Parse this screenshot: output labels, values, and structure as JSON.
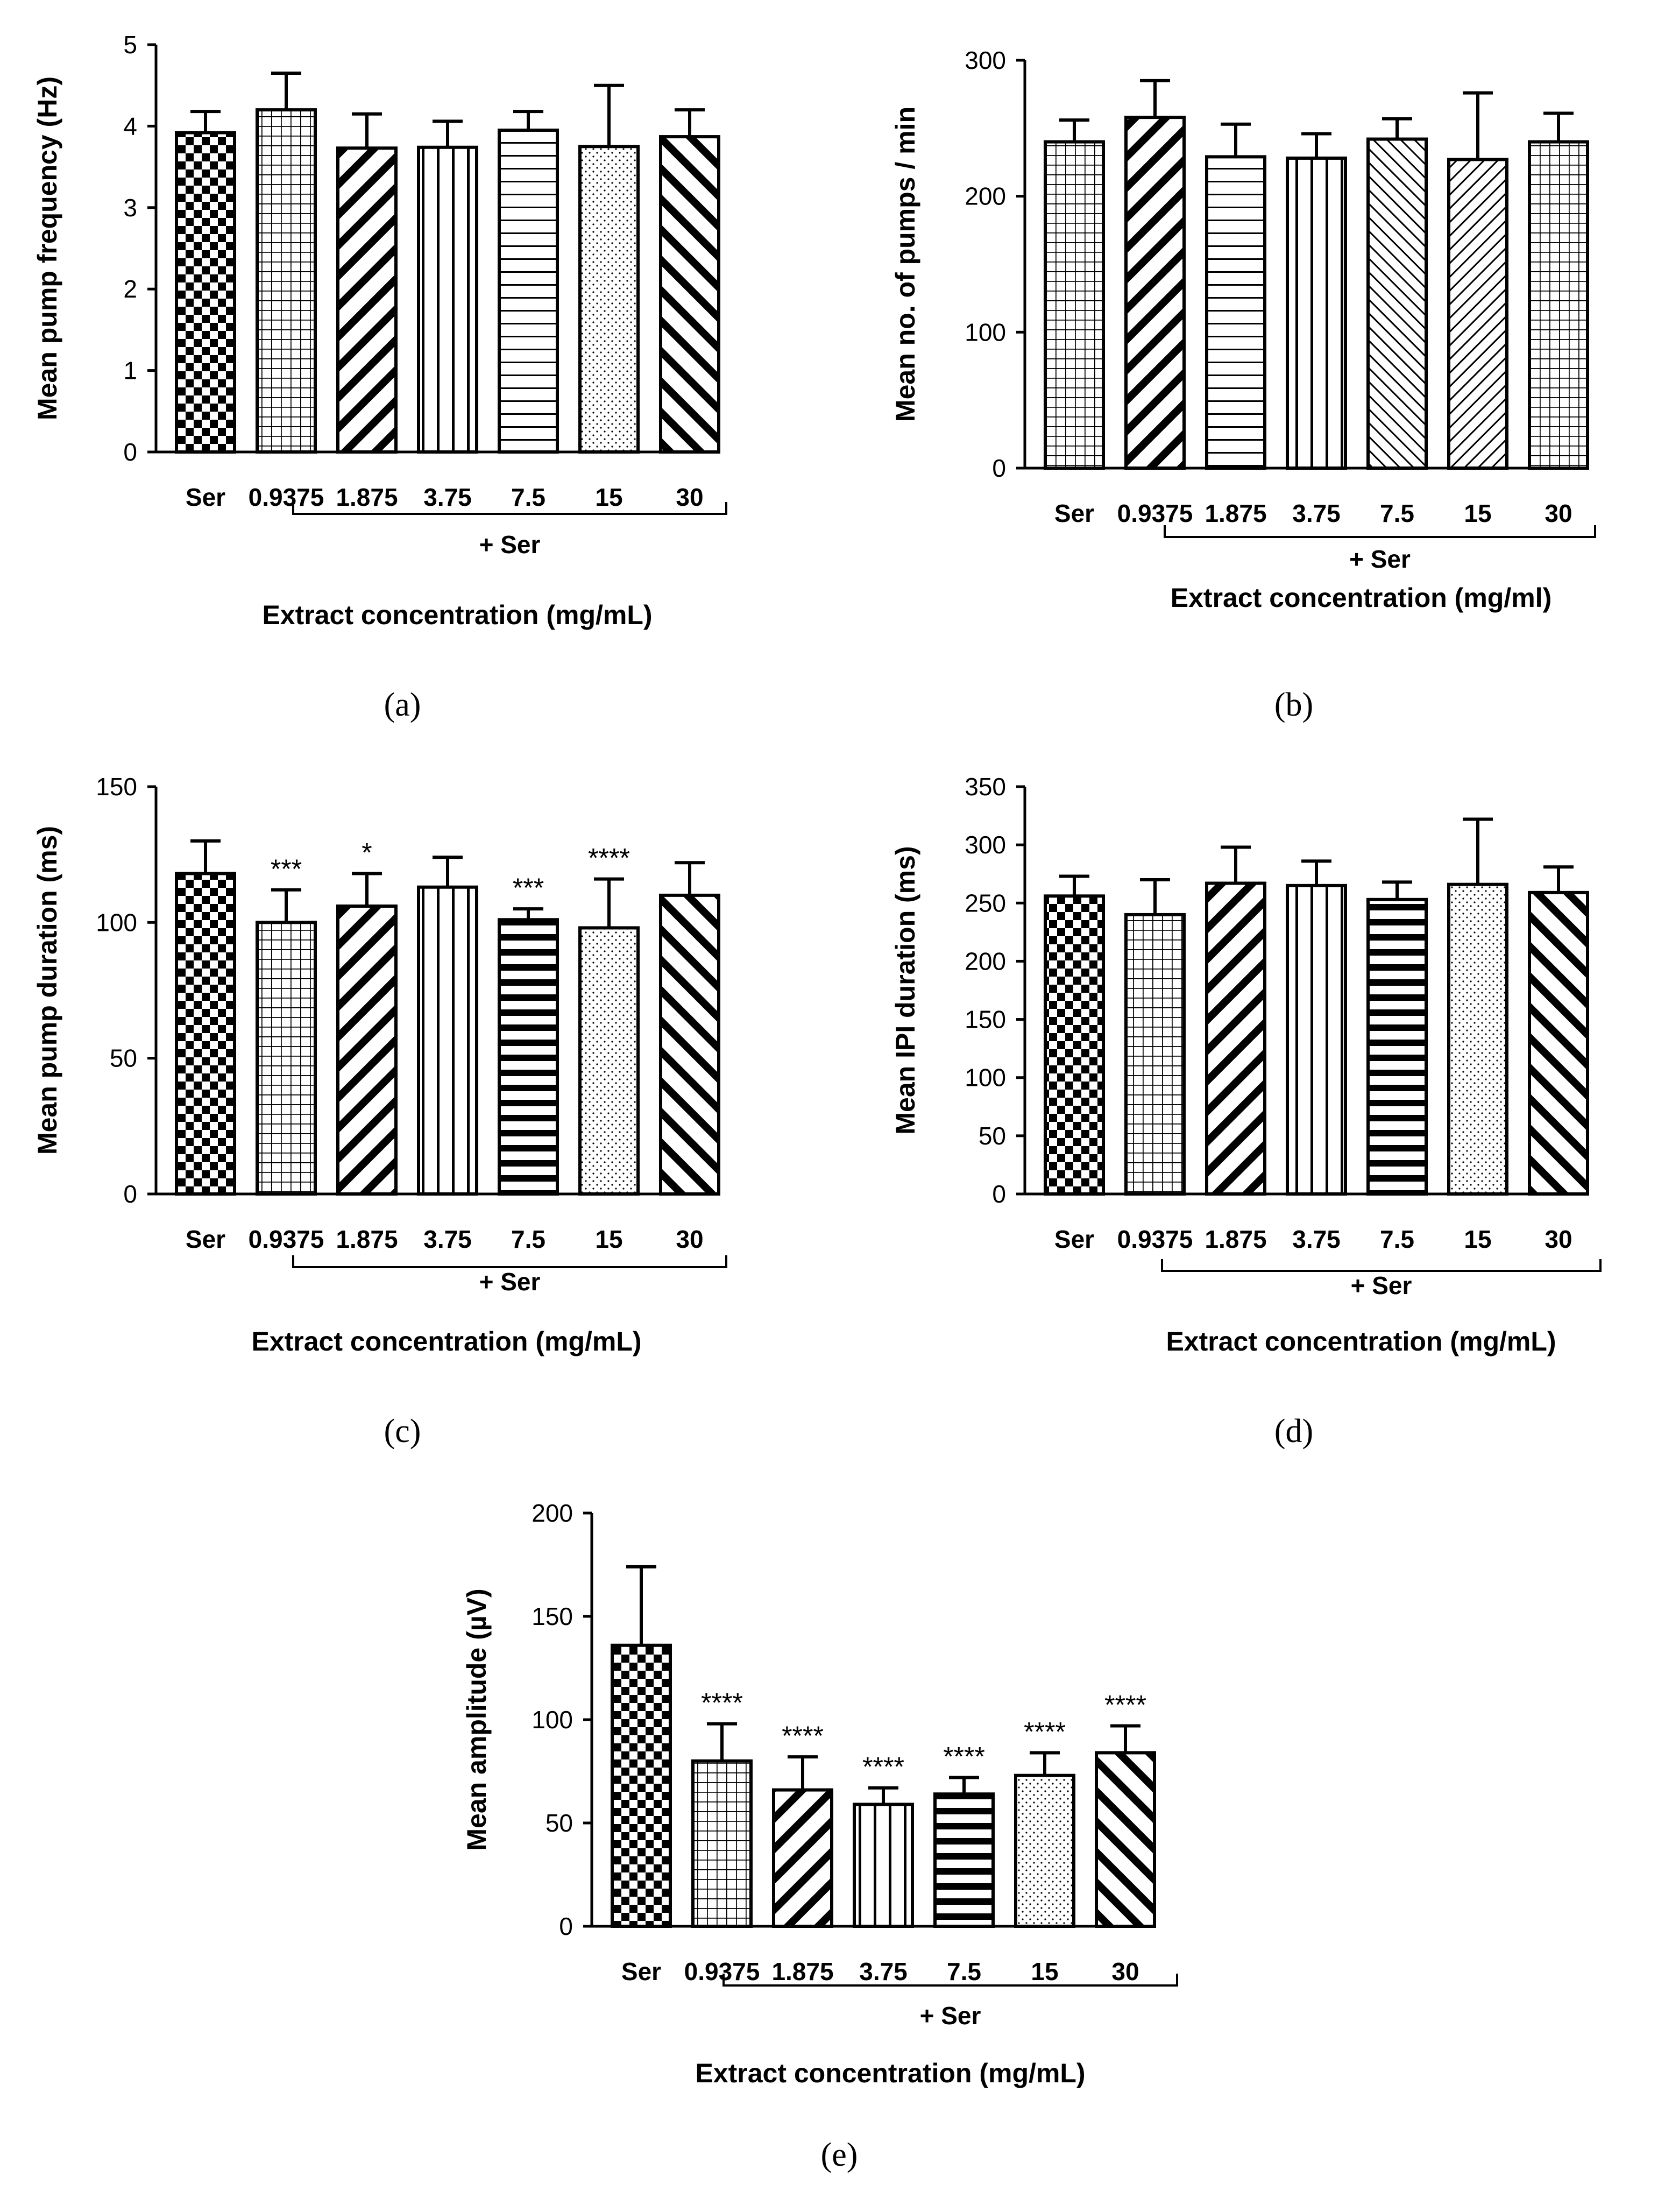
{
  "chart_data": [
    {
      "panel": "a",
      "type": "bar",
      "ylabel": "Mean pump frequency (Hz)",
      "xlabel": "Extract concentration (mg/mL)",
      "bracket_label": "+ Ser",
      "panel_label": "(a)",
      "categories": [
        "Ser",
        "0.9375",
        "1.875",
        "3.75",
        "7.5",
        "15",
        "30"
      ],
      "values": [
        3.92,
        4.2,
        3.73,
        3.74,
        3.95,
        3.75,
        3.87
      ],
      "errors": [
        0.26,
        0.45,
        0.42,
        0.32,
        0.23,
        0.75,
        0.33
      ],
      "annotations": [
        "",
        "",
        "",
        "",
        "",
        "",
        ""
      ],
      "patterns": [
        "checker",
        "grid",
        "diagonal-down",
        "vertical",
        "horizontal",
        "dots",
        "diagonal-up"
      ],
      "ylim": [
        0,
        5
      ],
      "yticks": [
        0,
        1,
        2,
        3,
        4,
        5
      ],
      "grid": false
    },
    {
      "panel": "b",
      "type": "bar",
      "ylabel": "Mean no. of pumps / min",
      "xlabel": "Extract concentration (mg/ml)",
      "bracket_label": "+ Ser",
      "panel_label": "(b)",
      "categories": [
        "Ser",
        "0.9375",
        "1.875",
        "3.75",
        "7.5",
        "15",
        "30"
      ],
      "values": [
        240,
        258,
        229,
        228,
        242,
        227,
        240
      ],
      "errors": [
        16,
        27,
        24,
        18,
        15,
        49,
        21
      ],
      "annotations": [
        "",
        "",
        "",
        "",
        "",
        "",
        ""
      ],
      "patterns": [
        "grid",
        "diagonal-down",
        "horizontal",
        "vertical",
        "diagonal-up-fine",
        "diagonal-down-fine",
        "grid"
      ],
      "ylim": [
        0,
        300
      ],
      "yticks": [
        0,
        100,
        200,
        300
      ],
      "grid": false
    },
    {
      "panel": "c",
      "type": "bar",
      "ylabel": "Mean pump duration (ms)",
      "xlabel": "Extract concentration (mg/mL)",
      "bracket_label": "+ Ser",
      "panel_label": "(c)",
      "categories": [
        "Ser",
        "0.9375",
        "1.875",
        "3.75",
        "7.5",
        "15",
        "30"
      ],
      "values": [
        118,
        100,
        106,
        113,
        101,
        98,
        110
      ],
      "errors": [
        12,
        12,
        12,
        11,
        4,
        18,
        12
      ],
      "annotations": [
        "",
        "***",
        "*",
        "",
        "***",
        "****",
        ""
      ],
      "patterns": [
        "checker",
        "grid",
        "diagonal-down",
        "vertical",
        "horizontal-bold",
        "dots",
        "diagonal-up"
      ],
      "ylim": [
        0,
        150
      ],
      "yticks": [
        0,
        50,
        100,
        150
      ],
      "grid": false
    },
    {
      "panel": "d",
      "type": "bar",
      "ylabel": "Mean IPI duration (ms)",
      "xlabel": "Extract concentration (mg/mL)",
      "bracket_label": "+ Ser",
      "panel_label": "(d)",
      "categories": [
        "Ser",
        "0.9375",
        "1.875",
        "3.75",
        "7.5",
        "15",
        "30"
      ],
      "values": [
        256,
        240,
        267,
        265,
        253,
        266,
        259
      ],
      "errors": [
        17,
        30,
        31,
        21,
        15,
        56,
        22
      ],
      "annotations": [
        "",
        "",
        "",
        "",
        "",
        "",
        ""
      ],
      "patterns": [
        "checker",
        "grid",
        "diagonal-down",
        "vertical",
        "horizontal-bold",
        "dots",
        "diagonal-up"
      ],
      "ylim": [
        0,
        350
      ],
      "yticks": [
        0,
        50,
        100,
        150,
        200,
        250,
        300,
        350
      ],
      "grid": false
    },
    {
      "panel": "e",
      "type": "bar",
      "ylabel": "Mean amplitude (µV)",
      "xlabel": "Extract concentration (mg/mL)",
      "bracket_label": "+ Ser",
      "panel_label": "(e)",
      "categories": [
        "Ser",
        "0.9375",
        "1.875",
        "3.75",
        "7.5",
        "15",
        "30"
      ],
      "values": [
        136,
        80,
        66,
        59,
        64,
        73,
        84
      ],
      "errors": [
        38,
        18,
        16,
        8,
        8,
        11,
        13
      ],
      "annotations": [
        "",
        "****",
        "****",
        "****",
        "****",
        "****",
        "****"
      ],
      "patterns": [
        "checker",
        "grid",
        "diagonal-down",
        "vertical",
        "horizontal-bold",
        "dots",
        "diagonal-up"
      ],
      "ylim": [
        0,
        200
      ],
      "yticks": [
        0,
        50,
        100,
        150,
        200
      ],
      "grid": false
    }
  ]
}
